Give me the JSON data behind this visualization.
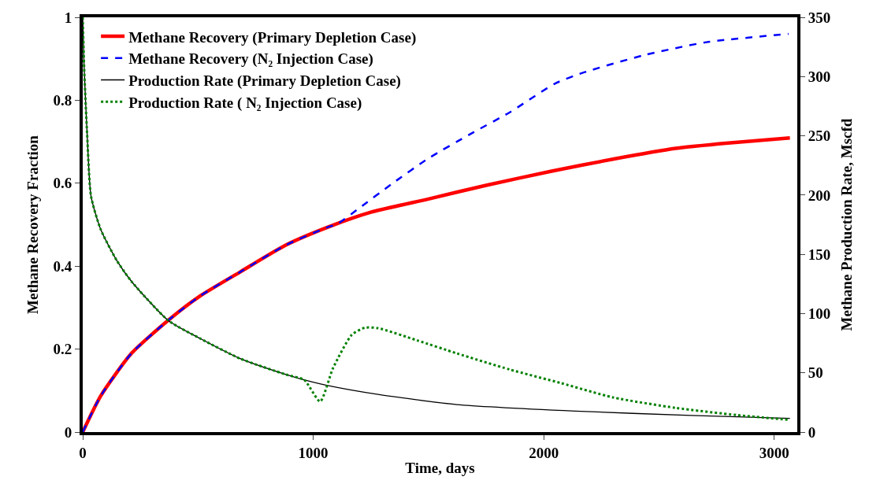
{
  "chart_data": {
    "type": "line",
    "xlabel": "Time, days",
    "ylabel": "Methane Recovery Fraction",
    "y2label": "Methane Production Rate, Mscfd",
    "xlim": [
      0,
      3100
    ],
    "xticks": [
      0,
      1000,
      2000,
      3000
    ],
    "ylim": [
      0,
      1
    ],
    "yticks": [
      0,
      {
        "value": 0.2,
        "label": "0.2"
      },
      {
        "value": 0.4,
        "label": "0.4"
      },
      {
        "value": 0.6,
        "label": "0.6"
      },
      {
        "value": 0.8,
        "label": "0.8"
      },
      1
    ],
    "y2lim": [
      0,
      350
    ],
    "y2ticks": [
      0,
      50,
      100,
      150,
      200,
      250,
      300,
      350
    ],
    "legend": "top left",
    "marker": "none",
    "series": [
      {
        "name": "Methane Recovery (Primary Depletion Case)",
        "color": "#ff0000",
        "line_style": "solid",
        "x": [
          0,
          78,
          212,
          372,
          509,
          683,
          882,
          1068,
          1250,
          1500,
          1750,
          2034,
          2300,
          2572,
          2800,
          3068
        ],
        "values": [
          0,
          0.087,
          0.19,
          0.27,
          0.328,
          0.386,
          0.451,
          0.495,
          0.53,
          0.562,
          0.595,
          0.629,
          0.658,
          0.684,
          0.697,
          0.709
        ]
      },
      {
        "name": "Methane Recovery (N₂ Injection Case)",
        "color": "#0000ff",
        "line_style": "dashed",
        "x": [
          0,
          78,
          212,
          372,
          509,
          683,
          882,
          1068,
          1100,
          1200,
          1345,
          1500,
          1686,
          1850,
          2048,
          2168,
          2437,
          2706,
          3062
        ],
        "values": [
          0,
          0.087,
          0.19,
          0.27,
          0.328,
          0.386,
          0.451,
          0.495,
          0.5,
          0.54,
          0.6,
          0.66,
          0.72,
          0.77,
          0.84,
          0.866,
          0.909,
          0.94,
          0.96
        ]
      },
      {
        "name": "Production Rate (Primary Depletion Case)",
        "color": "#000000",
        "line_style": "solid",
        "axis": "y2",
        "x": [
          0,
          6,
          19,
          36,
          78,
          147,
          212,
          372,
          509,
          683,
          882,
          938,
          1051,
          1281,
          1623,
          2137,
          2639,
          3068
        ],
        "values": [
          350,
          308,
          252,
          199,
          171,
          145,
          127,
          94,
          79,
          62,
          48.5,
          45.3,
          39.8,
          31.8,
          23.2,
          17.7,
          14,
          11.5
        ]
      },
      {
        "name": "Production Rate ( N₂ Injection Case)",
        "color": "#008000",
        "line_style": "dotted",
        "axis": "y2",
        "x": [
          0,
          6,
          19,
          36,
          78,
          147,
          212,
          372,
          509,
          683,
          882,
          961,
          1030,
          1086,
          1167,
          1223,
          1281,
          1452,
          1623,
          1852,
          2075,
          2301,
          2572,
          2839,
          3062
        ],
        "values": [
          350,
          308,
          252,
          199,
          171,
          145,
          127,
          94,
          79,
          62,
          48.5,
          44,
          25.8,
          54,
          82,
          88,
          87.7,
          77.3,
          66.4,
          52.8,
          41.3,
          29.2,
          20.4,
          14.3,
          10.4
        ]
      }
    ]
  }
}
